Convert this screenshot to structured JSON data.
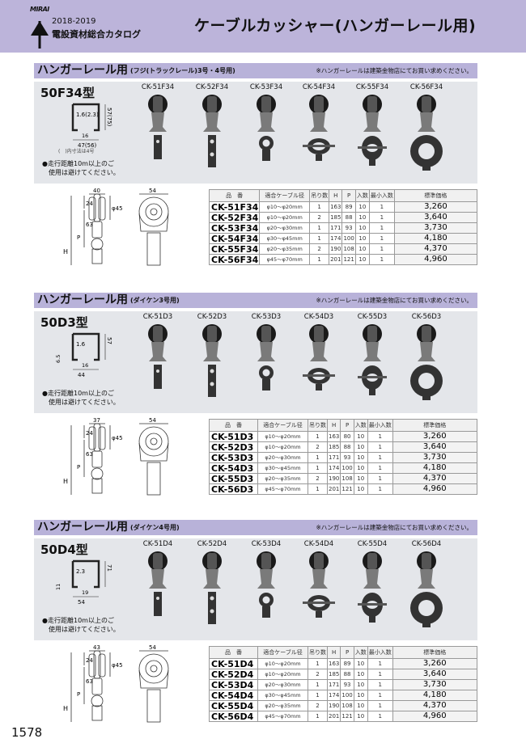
{
  "header": {
    "brand": "MIRAI",
    "year": "2018-2019",
    "catalog": "電設資材総合カタログ",
    "title": "ケーブルカッシャー(ハンガーレール用)"
  },
  "table_headers": [
    "品　番",
    "適合ケーブル径",
    "吊り数",
    "H",
    "P",
    "入数",
    "最小入数",
    "標準価格"
  ],
  "colors": {
    "header_band": "#bcb4da",
    "section_band": "#b8b2d9",
    "panel": "#e4e6ea"
  },
  "sections": [
    {
      "title": "ハンガーレール用",
      "subtitle": "(フジ(トラックレール)3号・4号用)",
      "note": "※ハンガーレールは建築金物店にてお買い求めください。",
      "model": "50F34型",
      "rail_dims": {
        "thickness": "1.6(2.3)",
        "height": "57(75)",
        "gap": "16",
        "width": "47(56)"
      },
      "rail_note": "(　)内寸法は4号",
      "warning": [
        "●走行距離10m以上のご",
        "　使用は避けてください。"
      ],
      "drawing_dims": {
        "width": "40",
        "depth": "54",
        "top": "24",
        "p": "63",
        "wheel": "φ45",
        "h": "H",
        "pl": "P"
      },
      "products": [
        "CK-51F34",
        "CK-52F34",
        "CK-53F34",
        "CK-54F34",
        "CK-55F34",
        "CK-56F34"
      ],
      "rows": [
        [
          "CK-51F34",
          "φ10～φ20mm",
          "1",
          "163",
          "89",
          "10",
          "1",
          "3,260"
        ],
        [
          "CK-52F34",
          "φ10～φ20mm",
          "2",
          "185",
          "88",
          "10",
          "1",
          "3,640"
        ],
        [
          "CK-53F34",
          "φ20～φ30mm",
          "1",
          "171",
          "93",
          "10",
          "1",
          "3,730"
        ],
        [
          "CK-54F34",
          "φ30～φ45mm",
          "1",
          "174",
          "100",
          "10",
          "1",
          "4,180"
        ],
        [
          "CK-55F34",
          "φ20～φ35mm",
          "2",
          "190",
          "108",
          "10",
          "1",
          "4,370"
        ],
        [
          "CK-56F34",
          "φ45～φ70mm",
          "1",
          "201",
          "121",
          "10",
          "1",
          "4,960"
        ]
      ]
    },
    {
      "title": "ハンガーレール用",
      "subtitle": "(ダイケン3号用)",
      "note": "※ハンガーレールは建築金物店にてお買い求めください。",
      "model": "50D3型",
      "rail_dims": {
        "thickness": "1.6",
        "height": "57",
        "gap": "16",
        "width": "44",
        "lip": "6.5"
      },
      "warning": [
        "●走行距離10m以上のご",
        "　使用は避けてください。"
      ],
      "drawing_dims": {
        "width": "37",
        "depth": "54",
        "top": "24",
        "p": "63",
        "wheel": "φ45",
        "h": "H",
        "pl": "P"
      },
      "products": [
        "CK-51D3",
        "CK-52D3",
        "CK-53D3",
        "CK-54D3",
        "CK-55D3",
        "CK-56D3"
      ],
      "rows": [
        [
          "CK-51D3",
          "φ10～φ20mm",
          "1",
          "163",
          "80",
          "10",
          "1",
          "3,260"
        ],
        [
          "CK-52D3",
          "φ10～φ20mm",
          "2",
          "185",
          "88",
          "10",
          "1",
          "3,640"
        ],
        [
          "CK-53D3",
          "φ20～φ30mm",
          "1",
          "171",
          "93",
          "10",
          "1",
          "3,730"
        ],
        [
          "CK-54D3",
          "φ30～φ45mm",
          "1",
          "174",
          "100",
          "10",
          "1",
          "4,180"
        ],
        [
          "CK-55D3",
          "φ20～φ35mm",
          "2",
          "190",
          "108",
          "10",
          "1",
          "4,370"
        ],
        [
          "CK-56D3",
          "φ45～φ70mm",
          "1",
          "201",
          "121",
          "10",
          "1",
          "4,960"
        ]
      ]
    },
    {
      "title": "ハンガーレール用",
      "subtitle": "(ダイケン4号用)",
      "note": "※ハンガーレールは建築金物店にてお買い求めください。",
      "model": "50D4型",
      "rail_dims": {
        "thickness": "2.3",
        "height": "71",
        "gap": "19",
        "width": "54",
        "lip": "11"
      },
      "warning": [
        "●走行距離10m以上のご",
        "　使用は避けてください。"
      ],
      "drawing_dims": {
        "width": "43",
        "depth": "54",
        "top": "24",
        "p": "63",
        "wheel": "φ45",
        "h": "H",
        "pl": "P"
      },
      "products": [
        "CK-51D4",
        "CK-52D4",
        "CK-53D4",
        "CK-54D4",
        "CK-55D4",
        "CK-56D4"
      ],
      "rows": [
        [
          "CK-51D4",
          "φ10～φ20mm",
          "1",
          "163",
          "89",
          "10",
          "1",
          "3,260"
        ],
        [
          "CK-52D4",
          "φ10～φ20mm",
          "2",
          "185",
          "88",
          "10",
          "1",
          "3,640"
        ],
        [
          "CK-53D4",
          "φ20～φ30mm",
          "1",
          "171",
          "93",
          "10",
          "1",
          "3,730"
        ],
        [
          "CK-54D4",
          "φ30～φ45mm",
          "1",
          "174",
          "100",
          "10",
          "1",
          "4,180"
        ],
        [
          "CK-55D4",
          "φ20～φ35mm",
          "2",
          "190",
          "108",
          "10",
          "1",
          "4,370"
        ],
        [
          "CK-56D4",
          "φ45～φ70mm",
          "1",
          "201",
          "121",
          "10",
          "1",
          "4,960"
        ]
      ]
    }
  ],
  "page_number": "1578"
}
